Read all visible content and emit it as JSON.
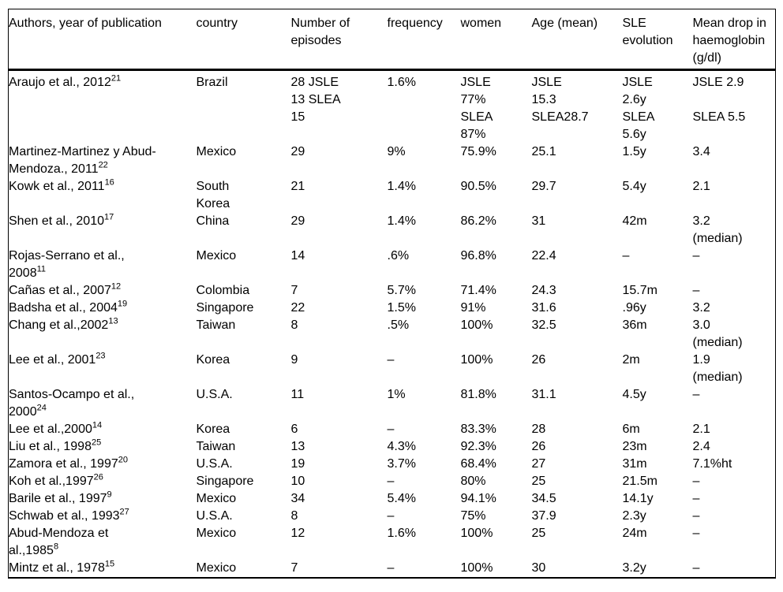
{
  "colors": {
    "background": "#ffffff",
    "text": "#000000",
    "border": "#000000"
  },
  "table": {
    "headers": [
      "Authors, year of publication",
      "country",
      "Number of episodes",
      "frequency",
      "women",
      "Age (mean)",
      "SLE evolution",
      "Mean drop in haemoglobin (g/dl)"
    ],
    "rows": [
      {
        "author": "Araujo et al., 2012",
        "ref": "21",
        "country": "Brazil",
        "episodes": "28 JSLE\n13 SLEA\n15",
        "frequency": "1.6%",
        "women": "JSLE\n77%\nSLEA\n87%",
        "age": "JSLE\n15.3\nSLEA28.7",
        "sle_evolution": "JSLE\n2.6y\nSLEA\n5.6y",
        "mean_drop": "JSLE 2.9\n\nSLEA 5.5"
      },
      {
        "author": "Martinez-Martinez y Abud-\nMendoza., 2011",
        "ref": "22",
        "country": "Mexico",
        "episodes": "29",
        "frequency": "9%",
        "women": "75.9%",
        "age": "25.1",
        "sle_evolution": "1.5y",
        "mean_drop": "3.4"
      },
      {
        "author": "Kowk et al., 2011",
        "ref": "16",
        "country": "South\nKorea",
        "episodes": "21",
        "frequency": "1.4%",
        "women": "90.5%",
        "age": "29.7",
        "sle_evolution": "5.4y",
        "mean_drop": "2.1"
      },
      {
        "author": "Shen et al., 2010",
        "ref": "17",
        "country": "China",
        "episodes": "29",
        "frequency": "1.4%",
        "women": "86.2%",
        "age": "31",
        "sle_evolution": "42m",
        "mean_drop": "3.2\n(median)"
      },
      {
        "author": "Rojas-Serrano et al.,\n2008",
        "ref": "11",
        "country": "Mexico",
        "episodes": "14",
        "frequency": ".6%",
        "women": "96.8%",
        "age": "22.4",
        "sle_evolution": "–",
        "mean_drop": "–"
      },
      {
        "author": "Cañas et al., 2007",
        "ref": "12",
        "country": "Colombia",
        "episodes": "7",
        "frequency": "5.7%",
        "women": "71.4%",
        "age": "24.3",
        "sle_evolution": "15.7m",
        "mean_drop": "–"
      },
      {
        "author": "Badsha et al., 2004",
        "ref": "19",
        "country": "Singapore",
        "episodes": "22",
        "frequency": "1.5%",
        "women": "91%",
        "age": "31.6",
        "sle_evolution": ".96y",
        "mean_drop": "3.2"
      },
      {
        "author": "Chang et al.,2002",
        "ref": "13",
        "country": "Taiwan",
        "episodes": "8",
        "frequency": ".5%",
        "women": "100%",
        "age": "32.5",
        "sle_evolution": "36m",
        "mean_drop": "3.0\n(median)"
      },
      {
        "author": "Lee et al., 2001",
        "ref": "23",
        "country": "Korea",
        "episodes": "9",
        "frequency": "–",
        "women": "100%",
        "age": "26",
        "sle_evolution": "2m",
        "mean_drop": "1.9\n(median)"
      },
      {
        "author": "Santos-Ocampo et al.,\n2000",
        "ref": "24",
        "country": "U.S.A.",
        "episodes": "11",
        "frequency": "1%",
        "women": "81.8%",
        "age": "31.1",
        "sle_evolution": "4.5y",
        "mean_drop": "–"
      },
      {
        "author": "Lee et al.,2000",
        "ref": "14",
        "country": "Korea",
        "episodes": "6",
        "frequency": "–",
        "women": "83.3%",
        "age": "28",
        "sle_evolution": "6m",
        "mean_drop": "2.1"
      },
      {
        "author": "Liu et al., 1998",
        "ref": "25",
        "country": "Taiwan",
        "episodes": "13",
        "frequency": "4.3%",
        "women": "92.3%",
        "age": "26",
        "sle_evolution": "23m",
        "mean_drop": "2.4"
      },
      {
        "author": "Zamora et al., 1997",
        "ref": "20",
        "country": "U.S.A.",
        "episodes": "19",
        "frequency": "3.7%",
        "women": "68.4%",
        "age": "27",
        "sle_evolution": "31m",
        "mean_drop": "7.1%ht"
      },
      {
        "author": "Koh et al.,1997",
        "ref": "26",
        "country": "Singapore",
        "episodes": "10",
        "frequency": "–",
        "women": "80%",
        "age": "25",
        "sle_evolution": "21.5m",
        "mean_drop": "–"
      },
      {
        "author": "Barile et al., 1997",
        "ref": "9",
        "country": "Mexico",
        "episodes": "34",
        "frequency": "5.4%",
        "women": "94.1%",
        "age": "34.5",
        "sle_evolution": "14.1y",
        "mean_drop": "–"
      },
      {
        "author": "Schwab et al., 1993",
        "ref": "27",
        "country": "U.S.A.",
        "episodes": "8",
        "frequency": "–",
        "women": "75%",
        "age": "37.9",
        "sle_evolution": "2.3y",
        "mean_drop": "–"
      },
      {
        "author": "Abud-Mendoza et\nal.,1985",
        "ref": "8",
        "country": "Mexico",
        "episodes": "12",
        "frequency": "1.6%",
        "women": "100%",
        "age": "25",
        "sle_evolution": "24m",
        "mean_drop": "–"
      },
      {
        "author": "Mintz et al., 1978",
        "ref": "15",
        "country": "Mexico",
        "episodes": "7",
        "frequency": "–",
        "women": "100%",
        "age": "30",
        "sle_evolution": "3.2y",
        "mean_drop": "–"
      }
    ]
  }
}
